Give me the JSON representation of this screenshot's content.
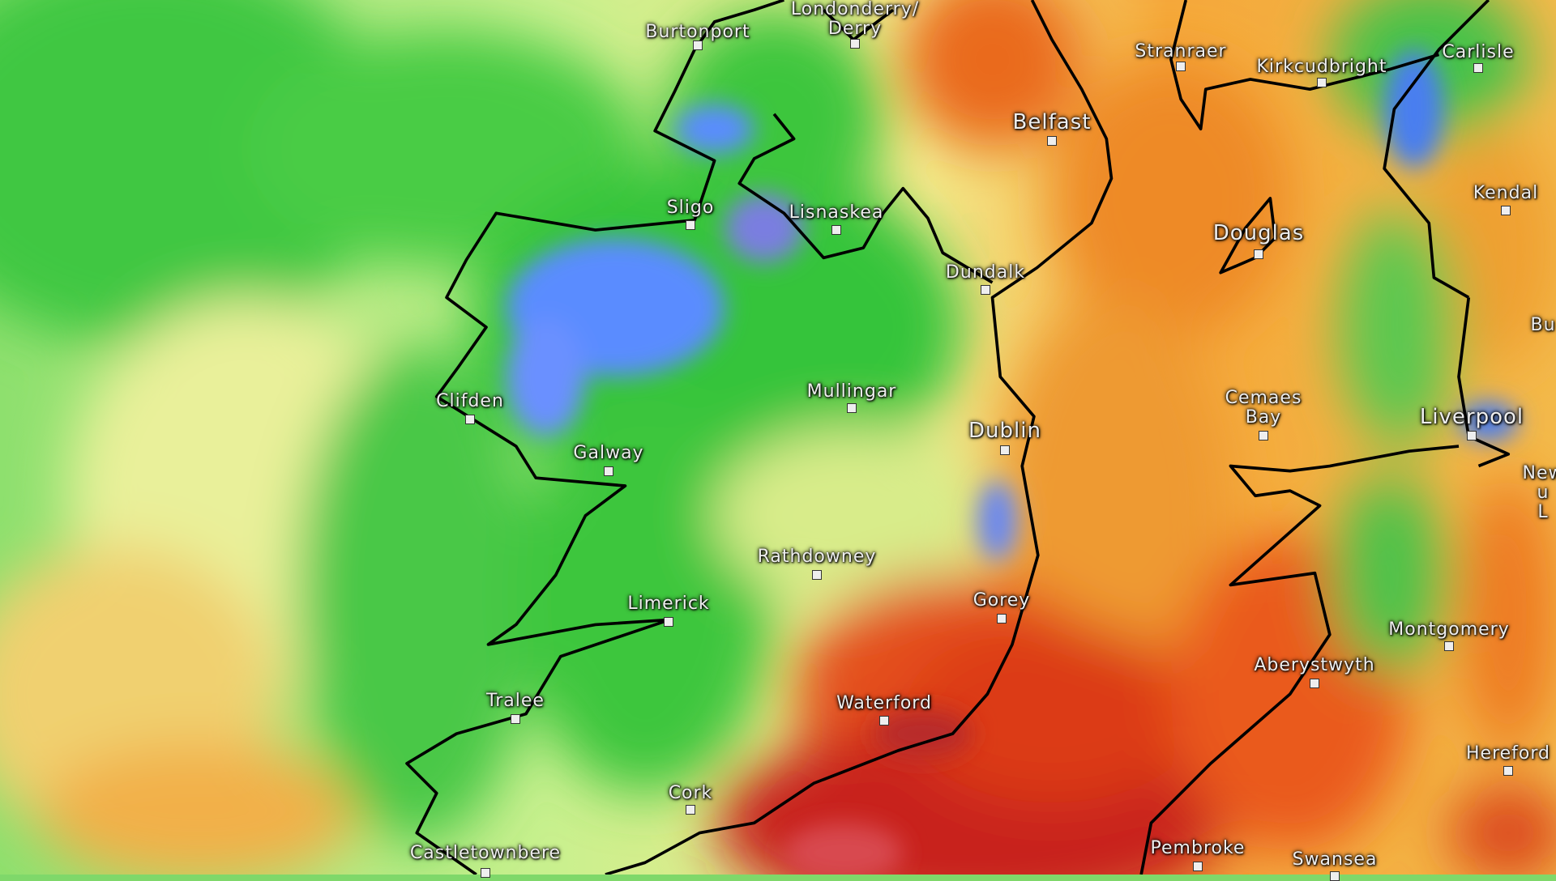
{
  "map": {
    "legend_colors": {
      "dry": "#f5f5a0",
      "light": "#3ccf3c",
      "moderate": "#5a8cff",
      "heavy": "#8a3dbf",
      "warm_high": "#e8501a",
      "warm_max": "#b01616"
    },
    "places": [
      {
        "name": "Londonderry/",
        "name2": "Derry"
      },
      {
        "name": "Burtonport"
      },
      {
        "name": "Stranraer"
      },
      {
        "name": "Kirkcudbright"
      },
      {
        "name": "Carlisle"
      },
      {
        "name": "Belfast"
      },
      {
        "name": "Kendal"
      },
      {
        "name": "Sligo"
      },
      {
        "name": "Lisnaskea"
      },
      {
        "name": "Douglas"
      },
      {
        "name": "Dundalk"
      },
      {
        "name": "Bu"
      },
      {
        "name": "Cemaes",
        "name2": "Bay"
      },
      {
        "name": "Liverpool"
      },
      {
        "name": "Clifden"
      },
      {
        "name": "Mullingar"
      },
      {
        "name": "Dublin"
      },
      {
        "name": "Galway"
      },
      {
        "name": "New",
        "name2": "u",
        "name3": "L"
      },
      {
        "name": "Rathdowney"
      },
      {
        "name": "Limerick"
      },
      {
        "name": "Gorey"
      },
      {
        "name": "Montgomery"
      },
      {
        "name": "Aberystwyth"
      },
      {
        "name": "Tralee"
      },
      {
        "name": "Waterford"
      },
      {
        "name": "Hereford"
      },
      {
        "name": "Cork"
      },
      {
        "name": "Castletownbere"
      },
      {
        "name": "Pembroke"
      },
      {
        "name": "Swansea"
      }
    ]
  }
}
